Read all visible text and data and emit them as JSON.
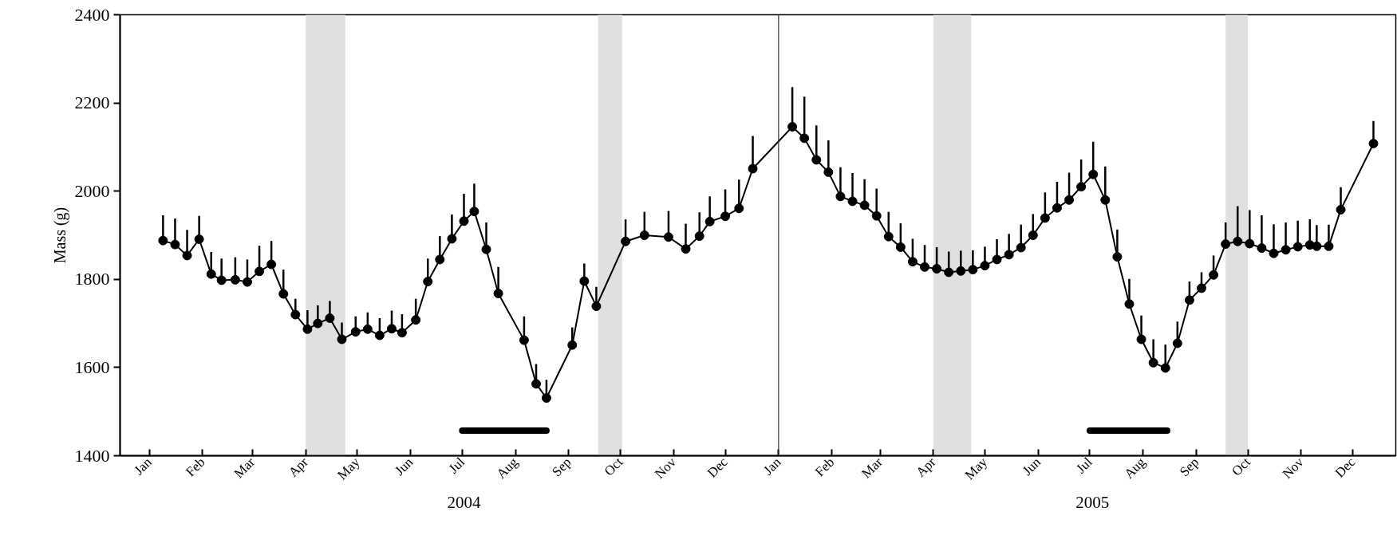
{
  "chart_data": {
    "type": "line",
    "ylabel": "Mass (g)",
    "xlim": [
      "2003-12-15",
      "2005-12-26"
    ],
    "ylim": [
      1400,
      2400
    ],
    "yticks": [
      1400,
      1600,
      1800,
      2000,
      2200,
      2400
    ],
    "xticks": [
      {
        "value": "2004-01-01",
        "label": "Jan"
      },
      {
        "value": "2004-02-01",
        "label": "Feb"
      },
      {
        "value": "2004-03-01",
        "label": "Mar"
      },
      {
        "value": "2004-04-01",
        "label": "Apr"
      },
      {
        "value": "2004-05-01",
        "label": "May"
      },
      {
        "value": "2004-06-01",
        "label": "Jun"
      },
      {
        "value": "2004-07-01",
        "label": "Jul"
      },
      {
        "value": "2004-08-01",
        "label": "Aug"
      },
      {
        "value": "2004-09-01",
        "label": "Sep"
      },
      {
        "value": "2004-10-01",
        "label": "Oct"
      },
      {
        "value": "2004-11-01",
        "label": "Nov"
      },
      {
        "value": "2004-12-01",
        "label": "Dec"
      },
      {
        "value": "2005-01-01",
        "label": "Jan"
      },
      {
        "value": "2005-02-01",
        "label": "Feb"
      },
      {
        "value": "2005-03-01",
        "label": "Mar"
      },
      {
        "value": "2005-04-01",
        "label": "Apr"
      },
      {
        "value": "2005-05-01",
        "label": "May"
      },
      {
        "value": "2005-06-01",
        "label": "Jun"
      },
      {
        "value": "2005-07-01",
        "label": "Jul"
      },
      {
        "value": "2005-08-01",
        "label": "Aug"
      },
      {
        "value": "2005-09-01",
        "label": "Sep"
      },
      {
        "value": "2005-10-01",
        "label": "Oct"
      },
      {
        "value": "2005-11-01",
        "label": "Nov"
      },
      {
        "value": "2005-12-01",
        "label": "Dec"
      }
    ],
    "grid": false,
    "line_style": "solid",
    "annotations": [
      "2004",
      "2005"
    ],
    "ref_lines": [
      {
        "axis": "x",
        "value": "2005-01-01",
        "color": "#333333"
      }
    ],
    "bands": [
      {
        "axis": "x",
        "from": "2004-04-01",
        "to": "2004-04-24",
        "color": "#e0e0e0"
      },
      {
        "axis": "x",
        "from": "2004-09-18",
        "to": "2004-10-02",
        "color": "#e0e0e0"
      },
      {
        "axis": "x",
        "from": "2005-04-01",
        "to": "2005-04-23",
        "color": "#e0e0e0"
      },
      {
        "axis": "x",
        "from": "2005-09-18",
        "to": "2005-10-01",
        "color": "#e0e0e0"
      }
    ],
    "series": [
      {
        "color": "#000000",
        "marker": "circle",
        "x": [
          "2004-01-09",
          "2004-01-16",
          "2004-01-23",
          "2004-01-30",
          "2004-02-06",
          "2004-02-12",
          "2004-02-20",
          "2004-02-27",
          "2004-03-05",
          "2004-03-12",
          "2004-03-19",
          "2004-03-26",
          "2004-04-02",
          "2004-04-08",
          "2004-04-15",
          "2004-04-22",
          "2004-04-30",
          "2004-05-07",
          "2004-05-14",
          "2004-05-21",
          "2004-05-27",
          "2004-06-04",
          "2004-06-11",
          "2004-06-18",
          "2004-06-25",
          "2004-07-02",
          "2004-07-08",
          "2004-07-15",
          "2004-07-22",
          "2004-08-06",
          "2004-08-13",
          "2004-08-19",
          "2004-09-03",
          "2004-09-10",
          "2004-09-17",
          "2004-10-04",
          "2004-10-15",
          "2004-10-29",
          "2004-11-08",
          "2004-11-16",
          "2004-11-22",
          "2004-12-01",
          "2004-12-09",
          "2004-12-17",
          "2005-01-09",
          "2005-01-16",
          "2005-01-23",
          "2005-01-30",
          "2005-02-06",
          "2005-02-13",
          "2005-02-20",
          "2005-02-27",
          "2005-03-06",
          "2005-03-13",
          "2005-03-20",
          "2005-03-27",
          "2005-04-03",
          "2005-04-10",
          "2005-04-17",
          "2005-04-24",
          "2005-05-01",
          "2005-05-08",
          "2005-05-15",
          "2005-05-22",
          "2005-05-29",
          "2005-06-05",
          "2005-06-12",
          "2005-06-19",
          "2005-06-26",
          "2005-07-03",
          "2005-07-10",
          "2005-07-17",
          "2005-07-24",
          "2005-07-31",
          "2005-08-07",
          "2005-08-14",
          "2005-08-21",
          "2005-08-28",
          "2005-09-04",
          "2005-09-11",
          "2005-09-18",
          "2005-09-25",
          "2005-10-02",
          "2005-10-09",
          "2005-10-16",
          "2005-10-23",
          "2005-10-30",
          "2005-11-06",
          "2005-11-10",
          "2005-11-17",
          "2005-11-24",
          "2005-12-13"
        ],
        "values": [
          1888,
          1879,
          1854,
          1891,
          1812,
          1798,
          1799,
          1794,
          1818,
          1834,
          1767,
          1720,
          1687,
          1700,
          1712,
          1664,
          1681,
          1687,
          1673,
          1688,
          1679,
          1708,
          1795,
          1845,
          1892,
          1932,
          1954,
          1868,
          1768,
          1662,
          1563,
          1531,
          1651,
          1796,
          1739,
          1886,
          1900,
          1896,
          1869,
          1898,
          1931,
          1943,
          1961,
          2051,
          2146,
          2120,
          2071,
          2043,
          1988,
          1977,
          1968,
          1944,
          1897,
          1873,
          1840,
          1828,
          1824,
          1816,
          1819,
          1822,
          1831,
          1845,
          1856,
          1872,
          1900,
          1939,
          1962,
          1980,
          2010,
          2038,
          1980,
          1851,
          1744,
          1664,
          1611,
          1599,
          1655,
          1753,
          1780,
          1810,
          1880,
          1886,
          1881,
          1871,
          1859,
          1867,
          1874,
          1878,
          1875,
          1875,
          1958,
          2108
        ],
        "errors": [
          [
            1888,
            1945
          ],
          [
            1879,
            1938
          ],
          [
            1854,
            1912
          ],
          [
            1891,
            1944
          ],
          [
            1812,
            1862
          ],
          [
            1798,
            1847
          ],
          [
            1799,
            1850
          ],
          [
            1794,
            1845
          ],
          [
            1818,
            1876
          ],
          [
            1834,
            1887
          ],
          [
            1767,
            1822
          ],
          [
            1720,
            1756
          ],
          [
            1687,
            1730
          ],
          [
            1700,
            1741
          ],
          [
            1712,
            1751
          ],
          [
            1664,
            1702
          ],
          [
            1681,
            1716
          ],
          [
            1687,
            1725
          ],
          [
            1673,
            1712
          ],
          [
            1688,
            1729
          ],
          [
            1679,
            1721
          ],
          [
            1708,
            1756
          ],
          [
            1795,
            1847
          ],
          [
            1845,
            1898
          ],
          [
            1892,
            1947
          ],
          [
            1932,
            1994
          ],
          [
            1954,
            2017
          ],
          [
            1868,
            1929
          ],
          [
            1768,
            1828
          ],
          [
            1662,
            1716
          ],
          [
            1563,
            1608
          ],
          [
            1531,
            1572
          ],
          [
            1651,
            1691
          ],
          [
            1796,
            1836
          ],
          [
            1739,
            1783
          ],
          [
            1886,
            1936
          ],
          [
            1900,
            1953
          ],
          [
            1896,
            1955
          ],
          [
            1869,
            1926
          ],
          [
            1898,
            1952
          ],
          [
            1931,
            1988
          ],
          [
            1943,
            2004
          ],
          [
            1961,
            2026
          ],
          [
            2051,
            2125
          ],
          [
            2146,
            2236
          ],
          [
            2120,
            2214
          ],
          [
            2071,
            2149
          ],
          [
            2043,
            2115
          ],
          [
            1988,
            2054
          ],
          [
            1977,
            2041
          ],
          [
            1968,
            2027
          ],
          [
            1944,
            2006
          ],
          [
            1897,
            1953
          ],
          [
            1873,
            1927
          ],
          [
            1840,
            1892
          ],
          [
            1828,
            1878
          ],
          [
            1824,
            1873
          ],
          [
            1816,
            1863
          ],
          [
            1819,
            1865
          ],
          [
            1822,
            1866
          ],
          [
            1831,
            1874
          ],
          [
            1845,
            1891
          ],
          [
            1856,
            1903
          ],
          [
            1872,
            1924
          ],
          [
            1900,
            1948
          ],
          [
            1939,
            1997
          ],
          [
            1962,
            2021
          ],
          [
            1980,
            2042
          ],
          [
            2010,
            2072
          ],
          [
            2038,
            2112
          ],
          [
            1980,
            2056
          ],
          [
            1851,
            1913
          ],
          [
            1744,
            1801
          ],
          [
            1664,
            1718
          ],
          [
            1611,
            1664
          ],
          [
            1599,
            1652
          ],
          [
            1655,
            1704
          ],
          [
            1753,
            1795
          ],
          [
            1780,
            1816
          ],
          [
            1810,
            1854
          ],
          [
            1880,
            1929
          ],
          [
            1886,
            1966
          ],
          [
            1881,
            1957
          ],
          [
            1871,
            1945
          ],
          [
            1859,
            1925
          ],
          [
            1867,
            1929
          ],
          [
            1874,
            1933
          ],
          [
            1878,
            1936
          ],
          [
            1875,
            1923
          ],
          [
            1875,
            1924
          ],
          [
            1958,
            2009
          ],
          [
            2108,
            2159
          ]
        ]
      },
      {
        "color": "#000000",
        "marker": "none",
        "x": [
          "2004-07-01",
          "2004-08-19"
        ],
        "values": [
          1457,
          1457
        ]
      },
      {
        "color": "#000000",
        "marker": "none",
        "x": [
          "2005-07-01",
          "2005-08-15"
        ],
        "values": [
          1457,
          1457
        ]
      }
    ]
  }
}
